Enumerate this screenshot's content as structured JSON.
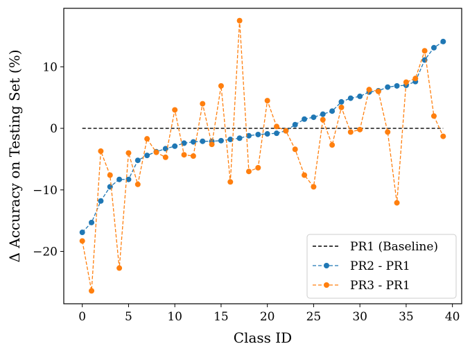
{
  "chart_data": {
    "type": "line",
    "xlabel": "Class ID",
    "ylabel": "Δ Accuracy on Testing Set (%)",
    "xlim": [
      -2,
      41
    ],
    "ylim": [
      -28.5,
      19.5
    ],
    "xticks": [
      0,
      5,
      10,
      15,
      20,
      25,
      30,
      35,
      40
    ],
    "yticks": [
      -20,
      -10,
      0,
      10
    ],
    "ytick_labels": [
      "−20",
      "−10",
      "0",
      "10"
    ],
    "legend_position": "bottom-right",
    "series": [
      {
        "name": "PR1 (Baseline)",
        "style": "dashed",
        "marker": "none",
        "color": "#000000",
        "x": [
          0,
          39
        ],
        "values": [
          0,
          0
        ]
      },
      {
        "name": "PR2 - PR1",
        "style": "dashed",
        "marker": "circle",
        "color": "#1f77b4",
        "x": [
          0,
          1,
          2,
          3,
          4,
          5,
          6,
          7,
          8,
          9,
          10,
          11,
          12,
          13,
          14,
          15,
          16,
          17,
          18,
          19,
          20,
          21,
          22,
          23,
          24,
          25,
          26,
          27,
          28,
          29,
          30,
          31,
          32,
          33,
          34,
          35,
          36,
          37,
          38,
          39
        ],
        "values": [
          -16.9,
          -15.3,
          -11.8,
          -9.5,
          -8.3,
          -8.3,
          -5.2,
          -4.4,
          -3.8,
          -3.3,
          -2.9,
          -2.4,
          -2.2,
          -2.1,
          -2.1,
          -2.0,
          -1.8,
          -1.6,
          -1.2,
          -1.0,
          -0.9,
          -0.8,
          -0.4,
          0.6,
          1.5,
          1.8,
          2.3,
          2.8,
          4.3,
          4.9,
          5.2,
          5.9,
          6.1,
          6.7,
          6.9,
          7.0,
          7.6,
          11.1,
          13.1,
          14.1
        ]
      },
      {
        "name": "PR3 - PR1",
        "style": "dashed",
        "marker": "circle",
        "color": "#ff7f0e",
        "x": [
          0,
          1,
          2,
          3,
          4,
          5,
          6,
          7,
          8,
          9,
          10,
          11,
          12,
          13,
          14,
          15,
          16,
          17,
          18,
          19,
          20,
          21,
          22,
          23,
          24,
          25,
          26,
          27,
          28,
          29,
          30,
          31,
          32,
          33,
          34,
          35,
          36,
          37,
          38,
          39
        ],
        "values": [
          -18.3,
          -26.4,
          -3.7,
          -7.6,
          -22.7,
          -4.0,
          -9.1,
          -1.7,
          -3.9,
          -4.7,
          3.0,
          -4.3,
          -4.5,
          4.0,
          -2.6,
          6.9,
          -8.7,
          17.5,
          -7.0,
          -6.4,
          4.5,
          0.3,
          -0.4,
          -3.4,
          -7.6,
          -9.5,
          1.4,
          -2.7,
          3.4,
          -0.6,
          -0.2,
          6.3,
          6.0,
          -0.6,
          -12.1,
          7.5,
          8.1,
          12.6,
          2.0,
          -1.3
        ]
      }
    ]
  }
}
